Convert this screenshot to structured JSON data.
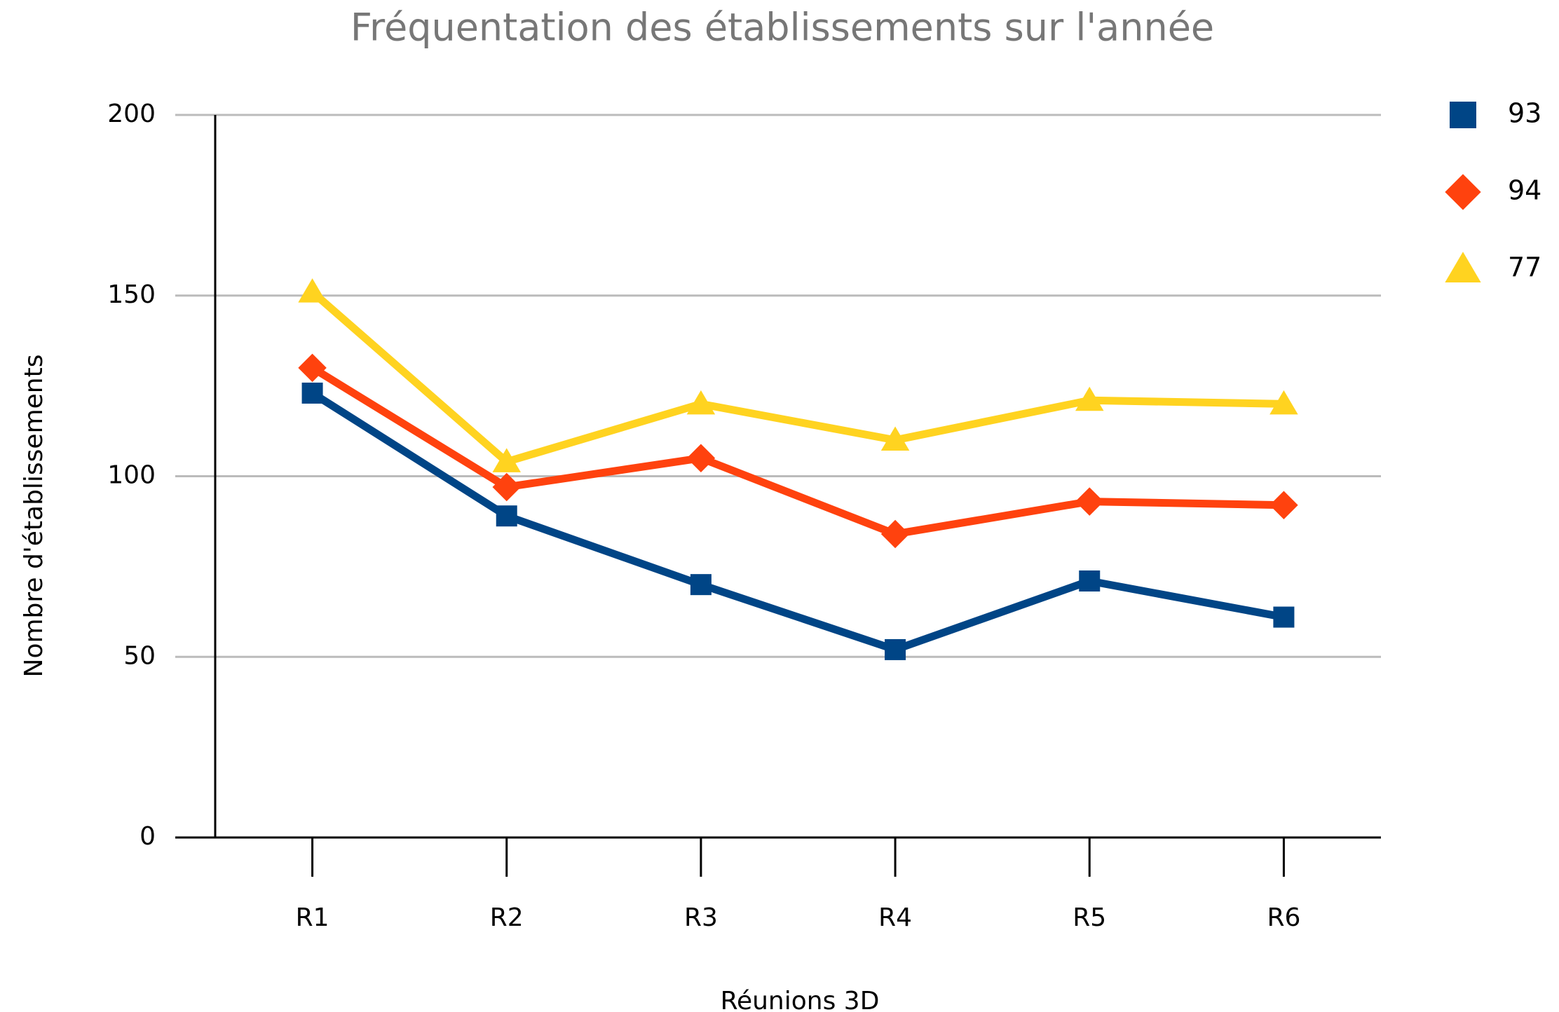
{
  "chart_data": {
    "type": "line",
    "title": "Fréquentation des établissements sur l'année",
    "x_label": "Réunions 3D",
    "y_label": "Nombre d'établissements",
    "categories": [
      "R1",
      "R2",
      "R3",
      "R4",
      "R5",
      "R6"
    ],
    "series": [
      {
        "name": "93",
        "color": "#004586",
        "marker": "square",
        "values": [
          123,
          89,
          70,
          52,
          71,
          61
        ]
      },
      {
        "name": "94",
        "color": "#ff420e",
        "marker": "diamond",
        "values": [
          130,
          97,
          105,
          84,
          93,
          92
        ]
      },
      {
        "name": "77",
        "color": "#ffd320",
        "marker": "triangle",
        "values": [
          151,
          104,
          120,
          110,
          121,
          120
        ]
      }
    ],
    "ylim": [
      0,
      200
    ],
    "yticks": [
      0,
      50,
      100,
      150,
      200
    ],
    "grid": true,
    "legend": "right"
  }
}
